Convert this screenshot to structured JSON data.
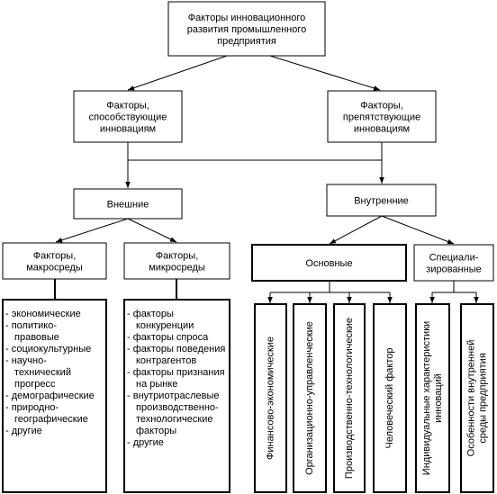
{
  "nodes": [
    {
      "lines": [
        "Факторы инновационного",
        "развития промышленного",
        "предприятия"
      ]
    },
    {
      "lines": [
        "Факторы,",
        "способствующие",
        "инновациям"
      ]
    },
    {
      "lines": [
        "Факторы,",
        "препятствующие",
        "инновациям"
      ]
    },
    {
      "lines": [
        "Внешние"
      ]
    },
    {
      "lines": [
        "Внутренние"
      ]
    },
    {
      "lines": [
        "Факторы,",
        "макросреды"
      ]
    },
    {
      "lines": [
        "Факторы,",
        "микросреды"
      ]
    },
    {
      "lines": [
        "Основные"
      ]
    },
    {
      "lines": [
        "Специали-",
        "зированные"
      ]
    },
    {
      "lines": [
        "- экономические",
        "- политико-",
        "правовые",
        "- социокультурные",
        "- научно-",
        "технический",
        "прогресс",
        "- демографические",
        "- природно-",
        "географические",
        "- другие"
      ]
    },
    {
      "lines": [
        "- факторы",
        "конкуренции",
        "- факторы спроса",
        "- факторы поведения",
        "контрагентов",
        "- факторы признания",
        "на рынке",
        "- внутриотраслевые",
        "производственно-",
        "технологические",
        "факторы",
        "- другие"
      ]
    },
    {
      "lines": [
        "Финансово-экономические"
      ]
    },
    {
      "lines": [
        "Организационно-управленческие"
      ]
    },
    {
      "lines": [
        "Производственно-технологические"
      ]
    },
    {
      "lines": [
        "Человеческий фактор"
      ]
    },
    {
      "lines": [
        "Индивидуальные характеристики",
        "инноваций"
      ]
    },
    {
      "lines": [
        "Особенности внутренней",
        "среды предприятия"
      ]
    }
  ]
}
